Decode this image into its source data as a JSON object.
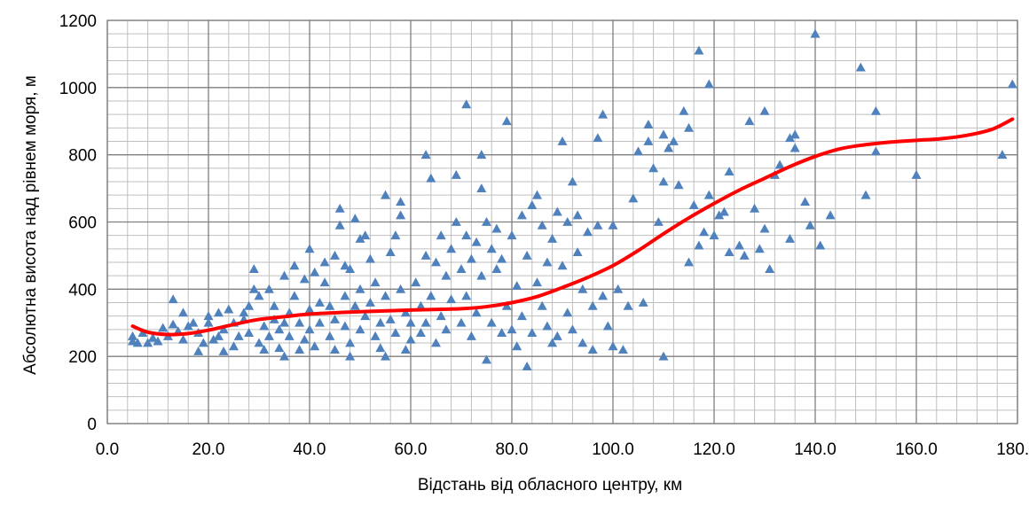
{
  "chart_data": {
    "type": "scatter",
    "title": "",
    "xlabel": "Відстань від обласного центру, км",
    "ylabel": "Абсолютна висота над рівнем моря, м",
    "xlim": [
      0,
      180
    ],
    "ylim": [
      0,
      1200
    ],
    "x_ticks": [
      "0.0",
      "20.0",
      "40.0",
      "60.0",
      "80.0",
      "100.0",
      "120.0",
      "140.0",
      "160.0",
      "180.0"
    ],
    "y_ticks": [
      "0",
      "200",
      "400",
      "600",
      "800",
      "1000",
      "1200"
    ],
    "x_major_step": 20,
    "y_major_step": 200,
    "x_minor_step": 4,
    "y_minor_step": 40,
    "grid": true,
    "legend": "none",
    "colors": {
      "points": "#4f81bd",
      "trend": "#ff0000",
      "major_grid": "#808080",
      "minor_grid": "#bfbfbf"
    },
    "series": [
      {
        "type": "scatter",
        "marker": "triangle",
        "points": [
          [
            5,
            245
          ],
          [
            5,
            260
          ],
          [
            6,
            240
          ],
          [
            7,
            270
          ],
          [
            8,
            240
          ],
          [
            9,
            255
          ],
          [
            10,
            245
          ],
          [
            11,
            285
          ],
          [
            12,
            260
          ],
          [
            13,
            295
          ],
          [
            13,
            370
          ],
          [
            14,
            275
          ],
          [
            15,
            250
          ],
          [
            15,
            330
          ],
          [
            16,
            290
          ],
          [
            17,
            300
          ],
          [
            18,
            215
          ],
          [
            18,
            270
          ],
          [
            19,
            240
          ],
          [
            20,
            300
          ],
          [
            20,
            320
          ],
          [
            21,
            250
          ],
          [
            22,
            260
          ],
          [
            22,
            330
          ],
          [
            23,
            280
          ],
          [
            23,
            215
          ],
          [
            24,
            340
          ],
          [
            25,
            300
          ],
          [
            25,
            230
          ],
          [
            26,
            260
          ],
          [
            27,
            310
          ],
          [
            27,
            330
          ],
          [
            28,
            270
          ],
          [
            28,
            350
          ],
          [
            29,
            400
          ],
          [
            29,
            460
          ],
          [
            30,
            240
          ],
          [
            30,
            380
          ],
          [
            31,
            290
          ],
          [
            31,
            220
          ],
          [
            32,
            400
          ],
          [
            32,
            260
          ],
          [
            33,
            350
          ],
          [
            33,
            310
          ],
          [
            34,
            280
          ],
          [
            34,
            225
          ],
          [
            35,
            300
          ],
          [
            35,
            200
          ],
          [
            35,
            440
          ],
          [
            36,
            330
          ],
          [
            36,
            260
          ],
          [
            37,
            470
          ],
          [
            37,
            380
          ],
          [
            38,
            300
          ],
          [
            38,
            220
          ],
          [
            39,
            430
          ],
          [
            39,
            250
          ],
          [
            40,
            520
          ],
          [
            40,
            340
          ],
          [
            40,
            280
          ],
          [
            41,
            450
          ],
          [
            41,
            230
          ],
          [
            42,
            360
          ],
          [
            42,
            300
          ],
          [
            43,
            480
          ],
          [
            43,
            420
          ],
          [
            44,
            350
          ],
          [
            44,
            260
          ],
          [
            45,
            500
          ],
          [
            45,
            310
          ],
          [
            45,
            220
          ],
          [
            46,
            640
          ],
          [
            46,
            590
          ],
          [
            47,
            470
          ],
          [
            47,
            380
          ],
          [
            47,
            290
          ],
          [
            48,
            460
          ],
          [
            48,
            240
          ],
          [
            48,
            200
          ],
          [
            49,
            610
          ],
          [
            49,
            350
          ],
          [
            50,
            550
          ],
          [
            50,
            400
          ],
          [
            50,
            280
          ],
          [
            51,
            560
          ],
          [
            51,
            320
          ],
          [
            52,
            490
          ],
          [
            52,
            360
          ],
          [
            53,
            420
          ],
          [
            53,
            260
          ],
          [
            54,
            300
          ],
          [
            54,
            225
          ],
          [
            55,
            680
          ],
          [
            55,
            380
          ],
          [
            55,
            200
          ],
          [
            56,
            510
          ],
          [
            56,
            310
          ],
          [
            57,
            560
          ],
          [
            57,
            270
          ],
          [
            58,
            660
          ],
          [
            58,
            620
          ],
          [
            58,
            400
          ],
          [
            59,
            330
          ],
          [
            59,
            220
          ],
          [
            60,
            300
          ],
          [
            60,
            250
          ],
          [
            61,
            420
          ],
          [
            62,
            350
          ],
          [
            62,
            270
          ],
          [
            63,
            800
          ],
          [
            63,
            500
          ],
          [
            63,
            300
          ],
          [
            64,
            730
          ],
          [
            64,
            380
          ],
          [
            65,
            480
          ],
          [
            65,
            240
          ],
          [
            66,
            560
          ],
          [
            66,
            320
          ],
          [
            67,
            440
          ],
          [
            67,
            280
          ],
          [
            68,
            520
          ],
          [
            68,
            370
          ],
          [
            69,
            740
          ],
          [
            69,
            600
          ],
          [
            70,
            460
          ],
          [
            70,
            300
          ],
          [
            71,
            950
          ],
          [
            71,
            560
          ],
          [
            71,
            380
          ],
          [
            72,
            490
          ],
          [
            72,
            260
          ],
          [
            73,
            540
          ],
          [
            73,
            330
          ],
          [
            74,
            800
          ],
          [
            74,
            700
          ],
          [
            74,
            440
          ],
          [
            75,
            600
          ],
          [
            75,
            190
          ],
          [
            76,
            520
          ],
          [
            76,
            300
          ],
          [
            77,
            580
          ],
          [
            77,
            460
          ],
          [
            78,
            490
          ],
          [
            78,
            270
          ],
          [
            79,
            900
          ],
          [
            79,
            350
          ],
          [
            80,
            560
          ],
          [
            80,
            280
          ],
          [
            81,
            410
          ],
          [
            81,
            230
          ],
          [
            82,
            620
          ],
          [
            82,
            320
          ],
          [
            83,
            500
          ],
          [
            83,
            170
          ],
          [
            84,
            650
          ],
          [
            84,
            270
          ],
          [
            85,
            680
          ],
          [
            85,
            420
          ],
          [
            86,
            590
          ],
          [
            86,
            350
          ],
          [
            87,
            480
          ],
          [
            87,
            290
          ],
          [
            88,
            550
          ],
          [
            88,
            240
          ],
          [
            89,
            630
          ],
          [
            89,
            260
          ],
          [
            90,
            840
          ],
          [
            90,
            470
          ],
          [
            91,
            600
          ],
          [
            91,
            330
          ],
          [
            92,
            720
          ],
          [
            92,
            280
          ],
          [
            93,
            620
          ],
          [
            93,
            510
          ],
          [
            94,
            400
          ],
          [
            94,
            240
          ],
          [
            95,
            570
          ],
          [
            96,
            350
          ],
          [
            96,
            220
          ],
          [
            97,
            850
          ],
          [
            97,
            590
          ],
          [
            98,
            920
          ],
          [
            98,
            380
          ],
          [
            99,
            290
          ],
          [
            100,
            590
          ],
          [
            100,
            230
          ],
          [
            101,
            400
          ],
          [
            102,
            220
          ],
          [
            103,
            350
          ],
          [
            104,
            670
          ],
          [
            105,
            810
          ],
          [
            106,
            360
          ],
          [
            107,
            890
          ],
          [
            107,
            840
          ],
          [
            108,
            760
          ],
          [
            109,
            600
          ],
          [
            110,
            860
          ],
          [
            110,
            720
          ],
          [
            110,
            200
          ],
          [
            111,
            820
          ],
          [
            112,
            840
          ],
          [
            113,
            710
          ],
          [
            114,
            930
          ],
          [
            115,
            880
          ],
          [
            115,
            480
          ],
          [
            116,
            650
          ],
          [
            117,
            1110
          ],
          [
            117,
            530
          ],
          [
            118,
            570
          ],
          [
            119,
            1010
          ],
          [
            119,
            680
          ],
          [
            120,
            560
          ],
          [
            121,
            620
          ],
          [
            122,
            630
          ],
          [
            123,
            750
          ],
          [
            123,
            510
          ],
          [
            125,
            530
          ],
          [
            126,
            500
          ],
          [
            127,
            900
          ],
          [
            128,
            640
          ],
          [
            129,
            520
          ],
          [
            130,
            930
          ],
          [
            130,
            580
          ],
          [
            131,
            460
          ],
          [
            132,
            740
          ],
          [
            133,
            770
          ],
          [
            135,
            850
          ],
          [
            135,
            550
          ],
          [
            136,
            820
          ],
          [
            136,
            860
          ],
          [
            138,
            660
          ],
          [
            139,
            590
          ],
          [
            140,
            1160
          ],
          [
            141,
            530
          ],
          [
            143,
            620
          ],
          [
            149,
            1060
          ],
          [
            150,
            680
          ],
          [
            152,
            930
          ],
          [
            152,
            810
          ],
          [
            160,
            740
          ],
          [
            177,
            800
          ],
          [
            179,
            1010
          ]
        ]
      },
      {
        "type": "line",
        "curve": [
          [
            5,
            290
          ],
          [
            8,
            272
          ],
          [
            12,
            265
          ],
          [
            16,
            268
          ],
          [
            20,
            278
          ],
          [
            25,
            295
          ],
          [
            30,
            310
          ],
          [
            35,
            318
          ],
          [
            40,
            326
          ],
          [
            50,
            333
          ],
          [
            60,
            338
          ],
          [
            70,
            342
          ],
          [
            75,
            348
          ],
          [
            80,
            360
          ],
          [
            85,
            378
          ],
          [
            90,
            405
          ],
          [
            95,
            435
          ],
          [
            100,
            470
          ],
          [
            105,
            515
          ],
          [
            110,
            565
          ],
          [
            115,
            612
          ],
          [
            120,
            655
          ],
          [
            125,
            695
          ],
          [
            130,
            730
          ],
          [
            135,
            765
          ],
          [
            140,
            795
          ],
          [
            145,
            818
          ],
          [
            150,
            830
          ],
          [
            155,
            838
          ],
          [
            160,
            843
          ],
          [
            165,
            848
          ],
          [
            170,
            858
          ],
          [
            175,
            876
          ],
          [
            179,
            906
          ]
        ]
      }
    ]
  }
}
